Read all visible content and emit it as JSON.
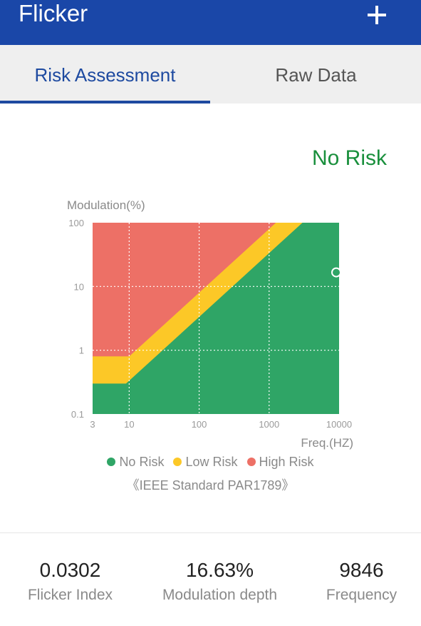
{
  "header": {
    "title": "Flicker",
    "add_icon": "plus-icon"
  },
  "tabs": [
    {
      "label": "Risk Assessment",
      "active": true
    },
    {
      "label": "Raw Data",
      "active": false
    }
  ],
  "risk_status": "No Risk",
  "colors": {
    "primary": "#1a47a8",
    "no_risk": "#2fa566",
    "low_risk": "#fcc827",
    "high_risk": "#ed7066",
    "status_text": "#198f3c"
  },
  "chart_data": {
    "type": "area",
    "xlabel": "Freq.(HZ)",
    "ylabel": "Modulation(%)",
    "x_scale": "log",
    "y_scale": "log",
    "xlim": [
      3,
      10000
    ],
    "ylim": [
      0.1,
      100
    ],
    "x_ticks": [
      "3",
      "10",
      "100",
      "1000",
      "10000"
    ],
    "y_ticks": [
      "100",
      "10",
      "1",
      "0.1"
    ],
    "grid": true,
    "regions": [
      {
        "name": "No Risk",
        "boundary": [
          [
            3,
            0.3
          ],
          [
            9,
            0.3
          ],
          [
            3000,
            100
          ]
        ]
      },
      {
        "name": "Low Risk",
        "boundary": [
          [
            3,
            0.8
          ],
          [
            10,
            0.8
          ],
          [
            1250,
            100
          ]
        ]
      },
      {
        "name": "High Risk",
        "boundary": "above Low Risk"
      }
    ],
    "measurement": {
      "frequency": 9846,
      "modulation": 16.63
    },
    "legend": [
      "No Risk",
      "Low Risk",
      "High Risk"
    ]
  },
  "standard_note": "《IEEE Standard PAR1789》",
  "stats": [
    {
      "value": "0.0302",
      "label": "Flicker Index"
    },
    {
      "value": "16.63%",
      "label": "Modulation depth"
    },
    {
      "value": "9846",
      "label": "Frequency"
    }
  ]
}
